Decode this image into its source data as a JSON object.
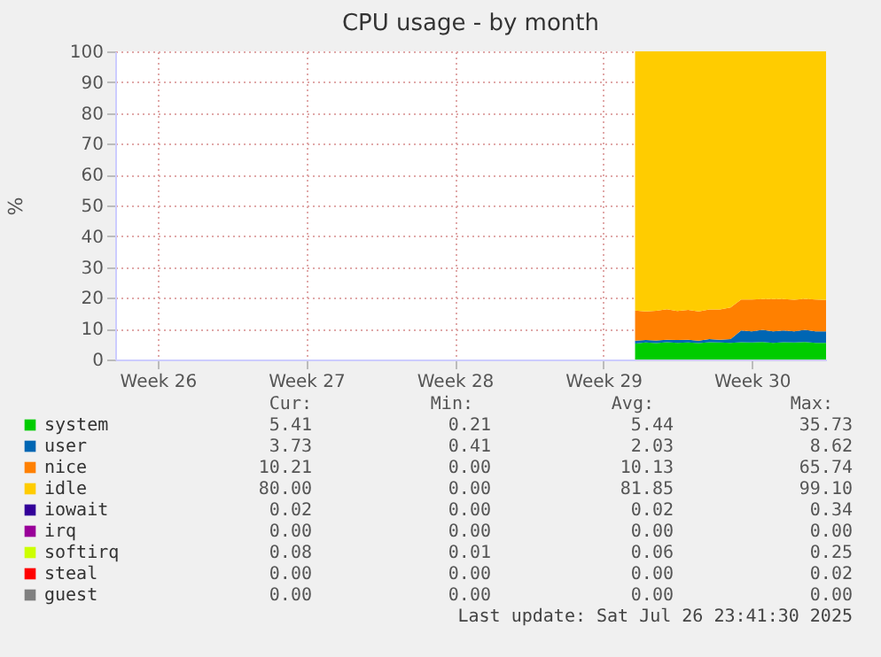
{
  "chart_data": {
    "type": "area",
    "stacked": true,
    "title": "CPU usage - by month",
    "ylabel": "%",
    "x": [
      "2025-07-18T00:00",
      "2025-07-18T12:00",
      "2025-07-19T00:00",
      "2025-07-19T12:00",
      "2025-07-20T00:00",
      "2025-07-20T12:00",
      "2025-07-21T00:00",
      "2025-07-21T12:00",
      "2025-07-22T00:00",
      "2025-07-22T12:00",
      "2025-07-23T00:00",
      "2025-07-23T12:00",
      "2025-07-24T00:00",
      "2025-07-24T12:00",
      "2025-07-25T00:00",
      "2025-07-25T12:00",
      "2025-07-26T00:00",
      "2025-07-26T12:00",
      "2025-07-27T00:00"
    ],
    "xlim": [
      "2025-06-23T12:00",
      "2025-07-27T00:00"
    ],
    "xticks": [
      {
        "value": "2025-06-25T12:00",
        "label": "Week 26"
      },
      {
        "value": "2025-07-02T12:00",
        "label": "Week 27"
      },
      {
        "value": "2025-07-09T12:00",
        "label": "Week 28"
      },
      {
        "value": "2025-07-16T12:00",
        "label": "Week 29"
      },
      {
        "value": "2025-07-23T12:00",
        "label": "Week 30"
      }
    ],
    "ylim": [
      0,
      100
    ],
    "yticks": [
      0,
      10,
      20,
      30,
      40,
      50,
      60,
      70,
      80,
      90,
      100
    ],
    "grid": true,
    "legend": "bottom",
    "series": [
      {
        "name": "system",
        "color": "#00cc00",
        "values": [
          5.2,
          5.5,
          5.3,
          5.6,
          5.4,
          5.5,
          5.3,
          5.6,
          5.5,
          5.4,
          5.6,
          5.5,
          5.7,
          5.4,
          5.6,
          5.5,
          5.7,
          5.4,
          5.4
        ]
      },
      {
        "name": "user",
        "color": "#0066b3",
        "values": [
          0.9,
          0.8,
          0.9,
          0.8,
          0.9,
          0.9,
          0.8,
          1.0,
          0.9,
          1.2,
          3.8,
          3.6,
          3.9,
          3.7,
          3.8,
          3.6,
          3.9,
          3.7,
          3.7
        ]
      },
      {
        "name": "nice",
        "color": "#ff8000",
        "values": [
          9.8,
          9.3,
          9.6,
          9.9,
          9.4,
          9.7,
          9.5,
          9.6,
          9.8,
          10.3,
          10.1,
          10.4,
          10.0,
          10.5,
          10.2,
          10.3,
          10.1,
          10.4,
          10.2
        ]
      },
      {
        "name": "idle",
        "color": "#ffcc00",
        "values": [
          84.1,
          84.4,
          84.2,
          83.7,
          84.3,
          83.9,
          84.4,
          83.8,
          83.8,
          83.1,
          80.5,
          80.5,
          80.4,
          80.4,
          80.4,
          80.6,
          80.3,
          80.5,
          80.7
        ]
      },
      {
        "name": "iowait",
        "color": "#330099",
        "values": [
          null,
          null,
          null,
          null,
          null,
          null,
          null,
          null,
          null,
          null,
          null,
          null,
          null,
          null,
          null,
          null,
          null,
          null,
          null
        ]
      },
      {
        "name": "irq",
        "color": "#990099",
        "values": [
          null,
          null,
          null,
          null,
          null,
          null,
          null,
          null,
          null,
          null,
          null,
          null,
          null,
          null,
          null,
          null,
          null,
          null,
          null
        ]
      },
      {
        "name": "softirq",
        "color": "#ccff00",
        "values": [
          null,
          null,
          null,
          null,
          null,
          null,
          null,
          null,
          null,
          null,
          null,
          null,
          null,
          null,
          null,
          null,
          null,
          null,
          null
        ]
      },
      {
        "name": "steal",
        "color": "#ff0000",
        "values": [
          null,
          null,
          null,
          null,
          null,
          null,
          null,
          null,
          null,
          null,
          null,
          null,
          null,
          null,
          null,
          null,
          null,
          null,
          null
        ]
      },
      {
        "name": "guest",
        "color": "#808080",
        "values": [
          null,
          null,
          null,
          null,
          null,
          null,
          null,
          null,
          null,
          null,
          null,
          null,
          null,
          null,
          null,
          null,
          null,
          null,
          null
        ]
      }
    ],
    "annotations": [
      "Cur:",
      "Min:",
      "Avg:",
      "Max:",
      "5.41",
      "0.21",
      "5.44",
      "35.73",
      "3.73",
      "0.41",
      "2.03",
      "8.62",
      "10.21",
      "0.00",
      "10.13",
      "65.74",
      "80.00",
      "0.00",
      "81.85",
      "99.10",
      "0.02",
      "0.00",
      "0.02",
      "0.34",
      "0.00",
      "0.00",
      "0.00",
      "0.00",
      "0.08",
      "0.01",
      "0.06",
      "0.25",
      "0.00",
      "0.00",
      "0.00",
      "0.02",
      "0.00",
      "0.00",
      "0.00",
      "0.00",
      "Last update: Sat Jul 26 23:41:30 2025"
    ]
  }
}
